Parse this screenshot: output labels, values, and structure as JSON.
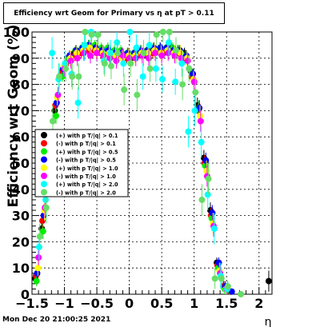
{
  "chart_data": {
    "type": "scatter",
    "title": "Efficiency wrt Geom for Primary vs η at pT > 0.11",
    "xlabel": "η",
    "ylabel": "Efficiency wrt Geom (%)",
    "xlim": [
      -1.5,
      2.2
    ],
    "ylim": [
      0,
      100
    ],
    "xticks": [
      -1.5,
      -1,
      -0.5,
      0,
      0.5,
      1,
      1.5,
      2
    ],
    "xtick_labels": [
      "−1.5",
      "−1",
      "−0.5",
      "0",
      "0.5",
      "1",
      "1.5",
      "2"
    ],
    "yticks": [
      0,
      10,
      20,
      30,
      40,
      50,
      60,
      70,
      80,
      90,
      100
    ],
    "grid": true,
    "legend_position": "middle-left",
    "series": [
      {
        "name": "(+) with p T/|q| > 0.1",
        "color": "#000000",
        "x": [
          -1.45,
          -1.35,
          -1.25,
          -1.15,
          -1.05,
          -0.95,
          -0.85,
          -0.75,
          -0.65,
          -0.55,
          -0.45,
          -0.35,
          -0.25,
          -0.15,
          -0.05,
          0.05,
          0.15,
          0.25,
          0.35,
          0.45,
          0.55,
          0.65,
          0.75,
          0.85,
          0.95,
          1.05,
          1.15,
          1.25,
          1.35,
          1.45,
          1.55,
          2.15
        ],
        "y": [
          6,
          25,
          50,
          70,
          84,
          90,
          92,
          93,
          94,
          94,
          93,
          93,
          92,
          92,
          91,
          91,
          92,
          92,
          93,
          93,
          93,
          94,
          93,
          92,
          85,
          72,
          52,
          32,
          12,
          3,
          1,
          5
        ],
        "err": [
          2,
          3,
          3,
          2,
          2,
          2,
          2,
          2,
          2,
          2,
          2,
          2,
          2,
          2,
          2,
          2,
          2,
          2,
          2,
          2,
          2,
          2,
          2,
          2,
          2,
          3,
          3,
          3,
          2,
          2,
          1,
          4
        ]
      },
      {
        "name": "(-) with p T/|q| > 0.1",
        "color": "#ff0000",
        "x": [
          -1.44,
          -1.34,
          -1.24,
          -1.14,
          -1.04,
          -0.94,
          -0.84,
          -0.74,
          -0.64,
          -0.54,
          -0.44,
          -0.34,
          -0.24,
          -0.14,
          -0.04,
          0.06,
          0.16,
          0.26,
          0.36,
          0.46,
          0.56,
          0.66,
          0.76,
          0.86,
          0.96,
          1.06,
          1.16,
          1.26,
          1.36,
          1.46,
          1.56
        ],
        "y": [
          7,
          28,
          52,
          72,
          85,
          89,
          91,
          92,
          93,
          93,
          92,
          92,
          91,
          91,
          90,
          91,
          92,
          92,
          92,
          93,
          93,
          93,
          92,
          90,
          83,
          70,
          50,
          30,
          11,
          3,
          1
        ],
        "err": [
          2,
          3,
          3,
          2,
          2,
          2,
          2,
          2,
          2,
          2,
          2,
          2,
          2,
          2,
          2,
          2,
          2,
          2,
          2,
          2,
          2,
          2,
          2,
          2,
          2,
          3,
          3,
          3,
          2,
          2,
          1
        ]
      },
      {
        "name": "(+) with p T/|q| > 0.5",
        "color": "#00ee00",
        "x": [
          -1.43,
          -1.33,
          -1.23,
          -1.13,
          -1.03,
          -0.93,
          -0.83,
          -0.73,
          -0.63,
          -0.53,
          -0.43,
          -0.33,
          -0.23,
          -0.13,
          -0.03,
          0.07,
          0.17,
          0.27,
          0.37,
          0.47,
          0.57,
          0.67,
          0.77,
          0.87,
          0.97,
          1.07,
          1.17,
          1.27,
          1.37,
          1.47,
          1.57
        ],
        "y": [
          5,
          24,
          48,
          68,
          83,
          90,
          93,
          94,
          95,
          95,
          94,
          94,
          93,
          93,
          92,
          92,
          93,
          93,
          94,
          94,
          94,
          94,
          93,
          91,
          84,
          71,
          49,
          29,
          10,
          2,
          1
        ],
        "err": [
          2,
          3,
          3,
          3,
          2,
          2,
          2,
          2,
          2,
          2,
          2,
          2,
          2,
          2,
          2,
          2,
          2,
          2,
          2,
          2,
          2,
          2,
          2,
          2,
          2,
          3,
          3,
          3,
          2,
          2,
          1
        ]
      },
      {
        "name": "(-) with p T/|q| > 0.5",
        "color": "#0000ff",
        "x": [
          -1.42,
          -1.32,
          -1.22,
          -1.12,
          -1.02,
          -0.92,
          -0.82,
          -0.72,
          -0.62,
          -0.52,
          -0.42,
          -0.32,
          -0.22,
          -0.12,
          -0.02,
          0.08,
          0.18,
          0.28,
          0.38,
          0.48,
          0.58,
          0.68,
          0.78,
          0.88,
          0.98,
          1.08,
          1.18,
          1.28,
          1.38,
          1.48,
          1.58
        ],
        "y": [
          8,
          30,
          53,
          73,
          86,
          91,
          93,
          94,
          95,
          94,
          93,
          93,
          92,
          92,
          92,
          92,
          93,
          93,
          94,
          94,
          94,
          93,
          93,
          91,
          84,
          71,
          51,
          31,
          12,
          3,
          1
        ],
        "err": [
          2,
          3,
          3,
          2,
          2,
          2,
          2,
          2,
          2,
          2,
          2,
          2,
          2,
          2,
          2,
          2,
          2,
          2,
          2,
          2,
          2,
          2,
          2,
          2,
          2,
          3,
          3,
          3,
          2,
          2,
          1
        ]
      },
      {
        "name": "(+) with p T/|q| > 1.0",
        "color": "#ffff00",
        "x": [
          -1.41,
          -1.31,
          -1.21,
          -1.11,
          -1.01,
          -0.91,
          -0.81,
          -0.71,
          -0.61,
          -0.51,
          -0.41,
          -0.31,
          -0.21,
          -0.11,
          -0.01,
          0.09,
          0.19,
          0.29,
          0.39,
          0.49,
          0.59,
          0.69,
          0.79,
          0.89,
          0.99,
          1.09,
          1.19,
          1.29,
          1.39,
          1.49
        ],
        "y": [
          10,
          32,
          55,
          75,
          87,
          90,
          92,
          93,
          94,
          93,
          92,
          92,
          91,
          90,
          91,
          91,
          92,
          92,
          93,
          92,
          93,
          92,
          92,
          90,
          82,
          68,
          47,
          27,
          9,
          2
        ],
        "err": [
          3,
          4,
          4,
          3,
          3,
          3,
          3,
          3,
          3,
          3,
          3,
          3,
          3,
          3,
          3,
          3,
          3,
          3,
          3,
          3,
          3,
          3,
          3,
          3,
          3,
          4,
          4,
          4,
          3,
          2
        ]
      },
      {
        "name": "(-) with p T/|q| > 1.0",
        "color": "#ff00ff",
        "x": [
          -1.4,
          -1.3,
          -1.2,
          -1.1,
          -1.0,
          -0.9,
          -0.8,
          -0.7,
          -0.6,
          -0.5,
          -0.4,
          -0.3,
          -0.2,
          -0.1,
          0.0,
          0.1,
          0.2,
          0.3,
          0.4,
          0.5,
          0.6,
          0.7,
          0.8,
          0.9,
          1.0,
          1.1,
          1.2,
          1.3,
          1.4,
          1.5
        ],
        "y": [
          14,
          33,
          57,
          76,
          86,
          89,
          90,
          92,
          91,
          92,
          91,
          90,
          89,
          91,
          90,
          90,
          91,
          90,
          92,
          91,
          92,
          91,
          90,
          89,
          81,
          66,
          45,
          26,
          8,
          2
        ],
        "err": [
          3,
          4,
          4,
          3,
          3,
          3,
          3,
          3,
          3,
          3,
          3,
          3,
          3,
          3,
          3,
          3,
          3,
          3,
          3,
          3,
          3,
          3,
          3,
          3,
          3,
          4,
          4,
          4,
          3,
          2
        ]
      },
      {
        "name": "(+) with p T/|q| > 2.0",
        "color": "#00ffff",
        "x": [
          -1.39,
          -1.29,
          -1.19,
          -1.09,
          -0.99,
          -0.89,
          -0.79,
          -0.69,
          -0.59,
          -0.49,
          -0.39,
          -0.29,
          -0.19,
          -0.09,
          0.01,
          0.11,
          0.21,
          0.31,
          0.41,
          0.51,
          0.61,
          0.71,
          0.81,
          0.91,
          1.01,
          1.11,
          1.21,
          1.31,
          1.41,
          1.51
        ],
        "y": [
          18,
          36,
          92,
          82,
          88,
          84,
          73,
          95,
          100,
          99,
          89,
          92,
          96,
          88,
          100,
          94,
          83,
          95,
          86,
          82,
          96,
          81,
          88,
          62,
          70,
          58,
          38,
          25,
          7,
          2
        ],
        "err": [
          5,
          6,
          6,
          6,
          5,
          5,
          6,
          6,
          4,
          4,
          5,
          5,
          5,
          5,
          4,
          5,
          5,
          5,
          5,
          5,
          5,
          5,
          5,
          6,
          6,
          6,
          6,
          6,
          5,
          3
        ]
      },
      {
        "name": "(-) with p T/|q| > 2.0",
        "color": "#66dd66",
        "x": [
          -1.38,
          -1.28,
          -1.18,
          -1.08,
          -0.98,
          -0.88,
          -0.78,
          -0.68,
          -0.58,
          -0.48,
          -0.38,
          -0.28,
          -0.18,
          -0.08,
          0.02,
          0.12,
          0.22,
          0.32,
          0.42,
          0.52,
          0.62,
          0.72,
          0.82,
          0.92,
          1.02,
          1.12,
          1.22,
          1.32,
          1.42,
          1.52,
          1.72
        ],
        "y": [
          22,
          33,
          66,
          83,
          86,
          83,
          83,
          100,
          99,
          99,
          88,
          87,
          92,
          78,
          88,
          76,
          92,
          86,
          99,
          100,
          100,
          93,
          80,
          86,
          77,
          36,
          44,
          6,
          6,
          3,
          0
        ],
        "err": [
          5,
          6,
          6,
          5,
          5,
          5,
          5,
          4,
          4,
          4,
          5,
          5,
          5,
          6,
          5,
          6,
          5,
          5,
          4,
          4,
          4,
          5,
          6,
          5,
          6,
          6,
          6,
          4,
          4,
          2,
          1
        ]
      }
    ]
  },
  "footer": {
    "datestamp": "Mon Dec 20 21:00:25 2021"
  }
}
